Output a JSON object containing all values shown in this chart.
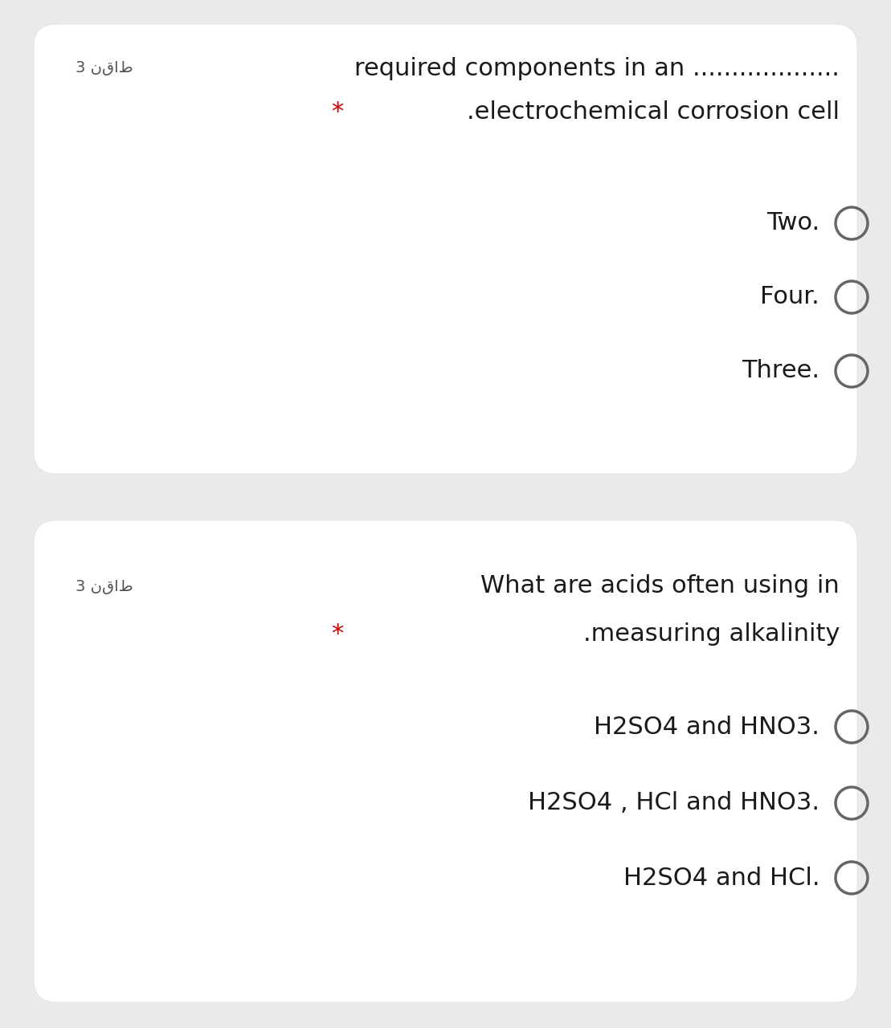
{
  "bg_color": "#eaeaea",
  "card_color": "#ffffff",
  "q1": {
    "points_label": "3 نقاط",
    "line1": "required components in an ...................",
    "line2_star": "*",
    "line2_text": ".electrochemical corrosion cell",
    "options": [
      "Two.",
      "Four.",
      "Three."
    ]
  },
  "q2": {
    "points_label": "3 نقاط",
    "line1": "What are acids often using in",
    "line2_star": "*",
    "line2_text": ".measuring alkalinity",
    "options": [
      "H2SO4 and HNO3.",
      "H2SO4 , HCl and HNO3.",
      "H2SO4 and HCl."
    ]
  },
  "star_color": "#cc0000",
  "text_color": "#1a1a1a",
  "points_color": "#555555",
  "circle_edge_color": "#666666",
  "text_fontsize": 22,
  "option_fontsize": 22,
  "points_fontsize": 14,
  "star_fontsize": 22
}
